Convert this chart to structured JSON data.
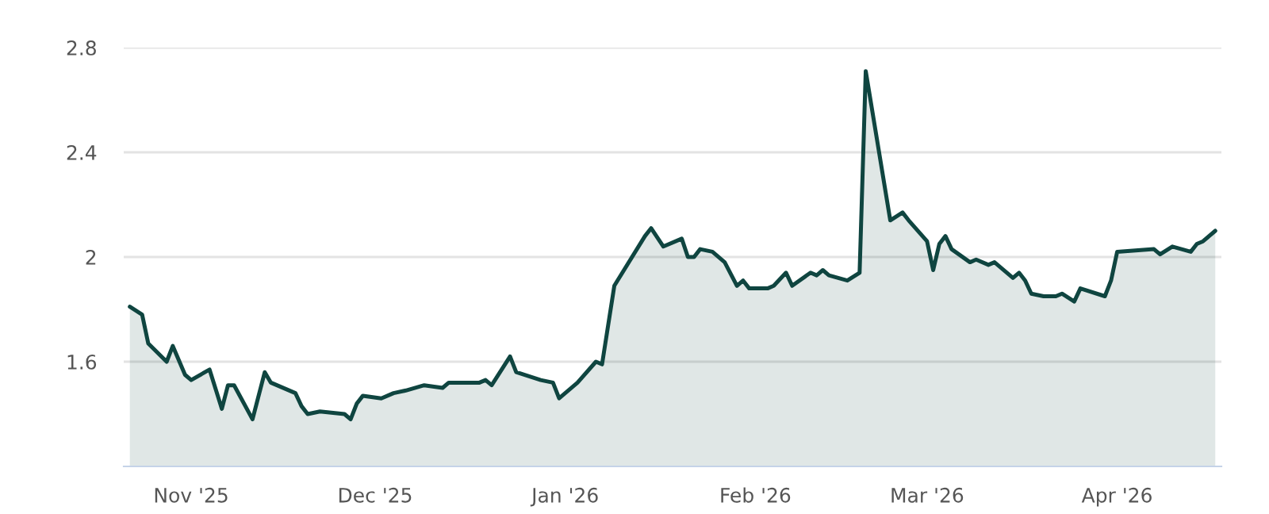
{
  "chart_data": {
    "type": "area",
    "x": [
      "2025-10-22",
      "2025-10-24",
      "2025-10-25",
      "2025-10-28",
      "2025-10-29",
      "2025-10-31",
      "2025-11-01",
      "2025-11-04",
      "2025-11-06",
      "2025-11-07",
      "2025-11-08",
      "2025-11-11",
      "2025-11-13",
      "2025-11-14",
      "2025-11-18",
      "2025-11-19",
      "2025-11-20",
      "2025-11-22",
      "2025-11-26",
      "2025-11-27",
      "2025-11-28",
      "2025-11-29",
      "2025-12-02",
      "2025-12-04",
      "2025-12-06",
      "2025-12-09",
      "2025-12-12",
      "2025-12-13",
      "2025-12-18",
      "2025-12-19",
      "2025-12-20",
      "2025-12-23",
      "2025-12-24",
      "2025-12-28",
      "2025-12-30",
      "2025-12-31",
      "2026-01-03",
      "2026-01-06",
      "2026-01-07",
      "2026-01-09",
      "2026-01-14",
      "2026-01-15",
      "2026-01-17",
      "2026-01-20",
      "2026-01-21",
      "2026-01-22",
      "2026-01-23",
      "2026-01-25",
      "2026-01-27",
      "2026-01-29",
      "2026-01-30",
      "2026-01-31",
      "2026-02-03",
      "2026-02-04",
      "2026-02-06",
      "2026-02-07",
      "2026-02-10",
      "2026-02-11",
      "2026-02-12",
      "2026-02-13",
      "2026-02-16",
      "2026-02-18",
      "2026-02-19",
      "2026-02-23",
      "2026-02-25",
      "2026-02-26",
      "2026-03-01",
      "2026-03-02",
      "2026-03-03",
      "2026-03-04",
      "2026-03-05",
      "2026-03-08",
      "2026-03-09",
      "2026-03-11",
      "2026-03-12",
      "2026-03-15",
      "2026-03-16",
      "2026-03-17",
      "2026-03-18",
      "2026-03-20",
      "2026-03-22",
      "2026-03-23",
      "2026-03-25",
      "2026-03-26",
      "2026-03-30",
      "2026-03-31",
      "2026-04-01",
      "2026-04-07",
      "2026-04-08",
      "2026-04-10",
      "2026-04-13",
      "2026-04-14",
      "2026-04-15",
      "2026-04-17"
    ],
    "series": [
      {
        "color": "#0f4540",
        "values": [
          1.81,
          1.78,
          1.67,
          1.6,
          1.66,
          1.55,
          1.53,
          1.57,
          1.42,
          1.51,
          1.51,
          1.38,
          1.56,
          1.52,
          1.48,
          1.43,
          1.4,
          1.41,
          1.4,
          1.38,
          1.44,
          1.47,
          1.46,
          1.48,
          1.49,
          1.51,
          1.5,
          1.52,
          1.52,
          1.53,
          1.51,
          1.62,
          1.56,
          1.53,
          1.52,
          1.46,
          1.52,
          1.6,
          1.59,
          1.89,
          2.08,
          2.11,
          2.04,
          2.07,
          2.0,
          2.0,
          2.03,
          2.02,
          1.98,
          1.89,
          1.91,
          1.88,
          1.88,
          1.89,
          1.94,
          1.89,
          1.94,
          1.93,
          1.95,
          1.93,
          1.91,
          1.94,
          2.71,
          2.14,
          2.17,
          2.14,
          2.06,
          1.95,
          2.05,
          2.08,
          2.03,
          1.98,
          1.99,
          1.97,
          1.98,
          1.92,
          1.94,
          1.91,
          1.86,
          1.85,
          1.85,
          1.86,
          1.83,
          1.88,
          1.85,
          1.91,
          2.02,
          2.03,
          2.01,
          2.04,
          2.02,
          2.05,
          2.06,
          2.1
        ]
      }
    ],
    "xlim": [
      "2025-10-21",
      "2026-04-18"
    ],
    "xticks": [
      {
        "value": "2025-11-01",
        "label": "Nov '25"
      },
      {
        "value": "2025-12-01",
        "label": "Dec '25"
      },
      {
        "value": "2026-01-01",
        "label": "Jan '26"
      },
      {
        "value": "2026-02-01",
        "label": "Feb '26"
      },
      {
        "value": "2026-03-01",
        "label": "Mar '26"
      },
      {
        "value": "2026-04-01",
        "label": "Apr '26"
      }
    ],
    "ylim": [
      1.2,
      2.8
    ],
    "yticks": [
      1.6,
      2,
      2.4,
      2.8
    ],
    "grid": "y"
  }
}
